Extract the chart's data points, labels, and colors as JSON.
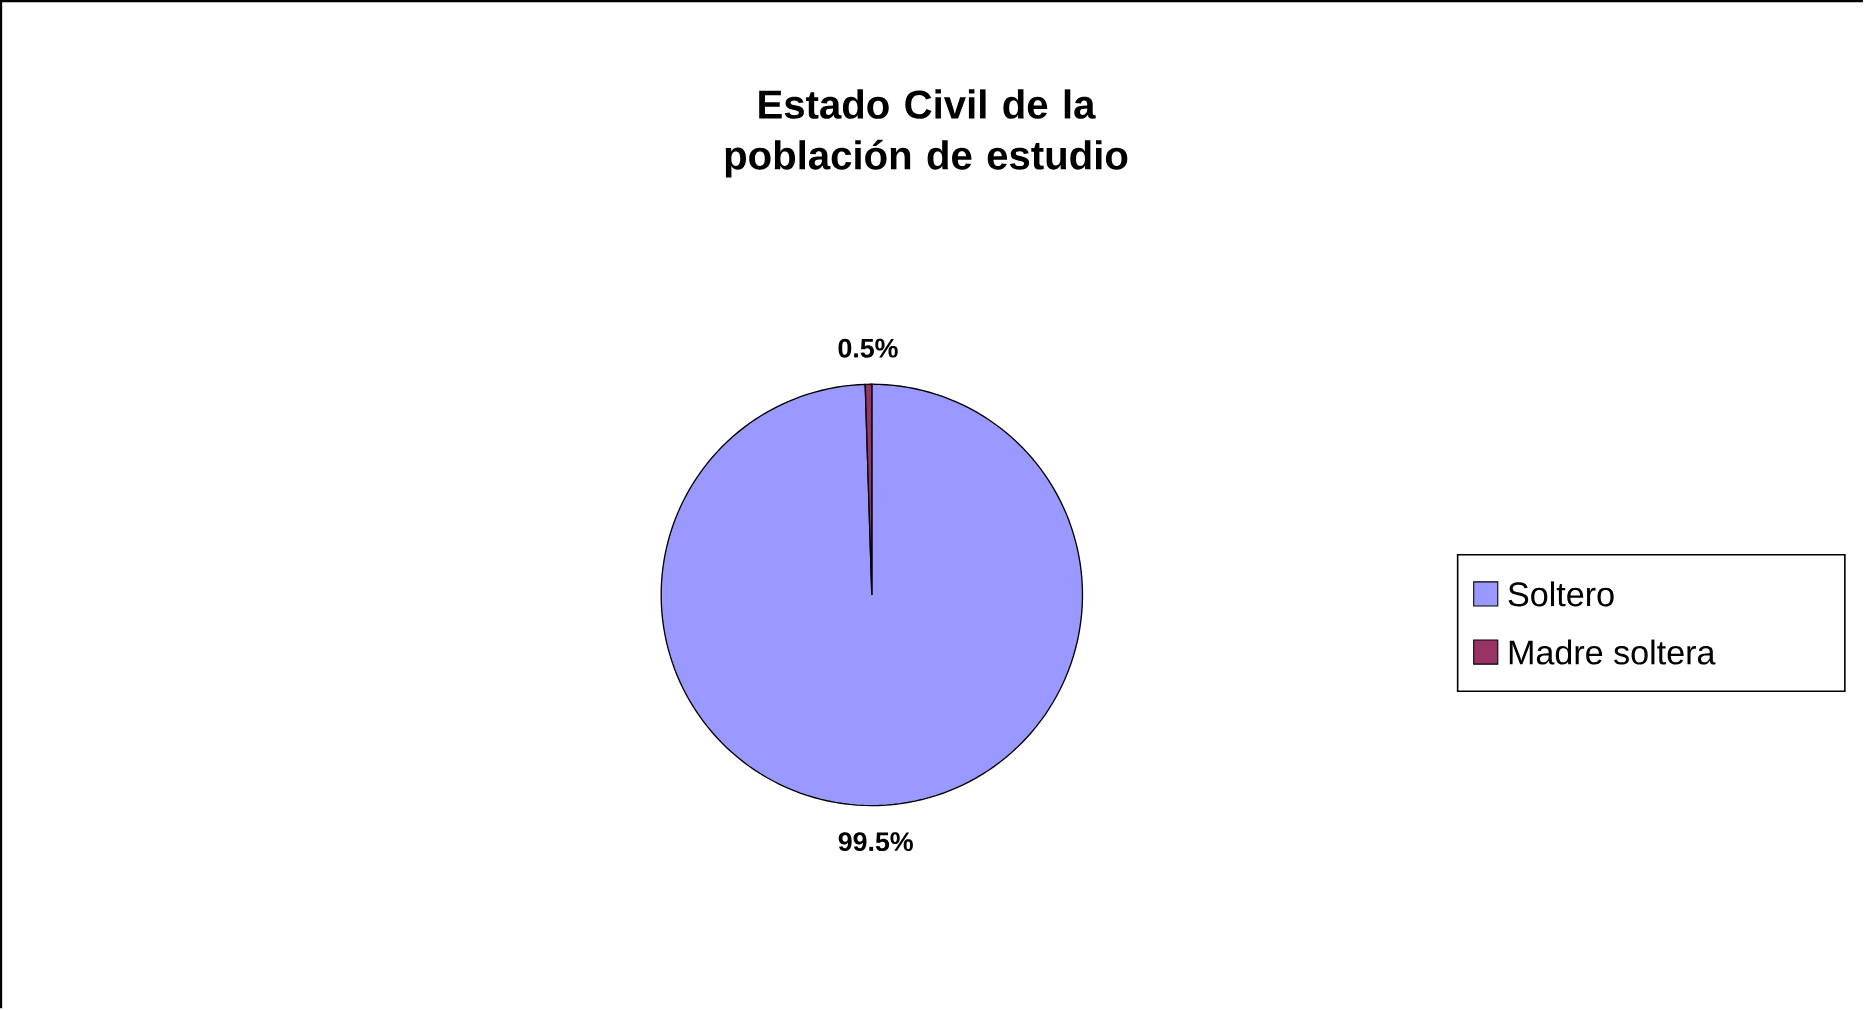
{
  "chart_data": {
    "type": "pie",
    "title": "Estado Civil de la población de estudio",
    "categories": [
      "Soltero",
      "Madre soltera"
    ],
    "values": [
      99.5,
      0.5
    ],
    "colors": [
      "#9999ff",
      "#993366"
    ],
    "value_labels": [
      "99.5%",
      "0.5%"
    ],
    "legend": "right"
  }
}
